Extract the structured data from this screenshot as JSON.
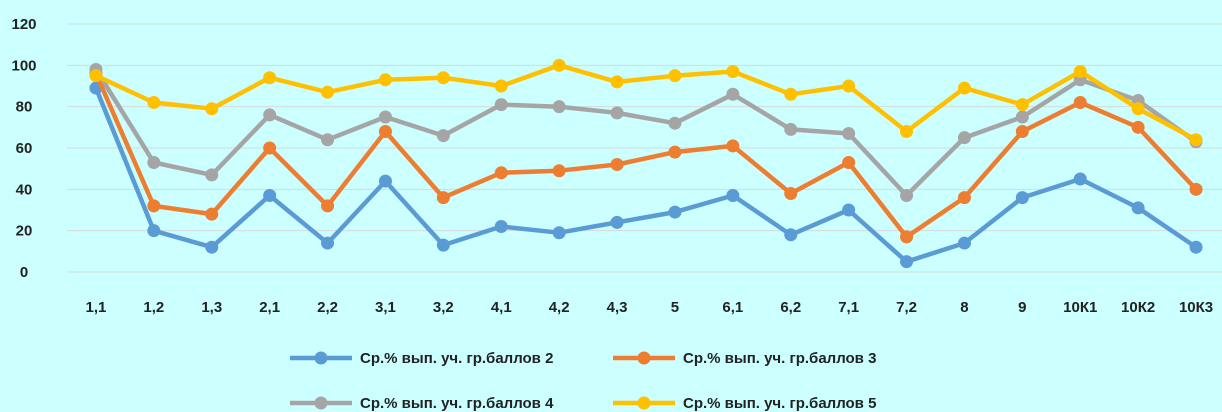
{
  "chart_data": {
    "type": "line",
    "title": "",
    "xlabel": "",
    "ylabel": "",
    "ylim": [
      0,
      120
    ],
    "yticks": [
      "0",
      "20",
      "40",
      "60",
      "80",
      "100",
      "120"
    ],
    "grid": true,
    "legend_position": "bottom",
    "categories": [
      "1,1",
      "1,2",
      "1,3",
      "2,1",
      "2,2",
      "3,1",
      "3,2",
      "4,1",
      "4,2",
      "4,3",
      "5",
      "6,1",
      "6,2",
      "7,1",
      "7,2",
      "8",
      "9",
      "10К1",
      "10К2",
      "10К3"
    ],
    "series": [
      {
        "name": "Ср.% вып. уч. гр.баллов 2",
        "color": "#5b9bd5",
        "values": [
          89,
          20,
          12,
          37,
          14,
          44,
          13,
          22,
          19,
          24,
          29,
          37,
          18,
          30,
          5,
          14,
          36,
          45,
          31,
          12
        ]
      },
      {
        "name": "Ср.% вып. уч. гр.баллов 3",
        "color": "#ed7d31",
        "values": [
          96,
          32,
          28,
          60,
          32,
          68,
          36,
          48,
          49,
          52,
          58,
          61,
          38,
          53,
          17,
          36,
          68,
          82,
          70,
          40
        ]
      },
      {
        "name": "Ср.% вып. уч. гр.баллов 4",
        "color": "#a5a5a5",
        "values": [
          98,
          53,
          47,
          76,
          64,
          75,
          66,
          81,
          80,
          77,
          72,
          86,
          69,
          67,
          37,
          65,
          75,
          93,
          83,
          63
        ]
      },
      {
        "name": "Ср.% вып. уч. гр.баллов 5",
        "color": "#ffc000",
        "values": [
          95,
          82,
          79,
          94,
          87,
          93,
          94,
          90,
          100,
          92,
          95,
          97,
          86,
          90,
          68,
          89,
          81,
          97,
          79,
          64
        ]
      }
    ]
  }
}
